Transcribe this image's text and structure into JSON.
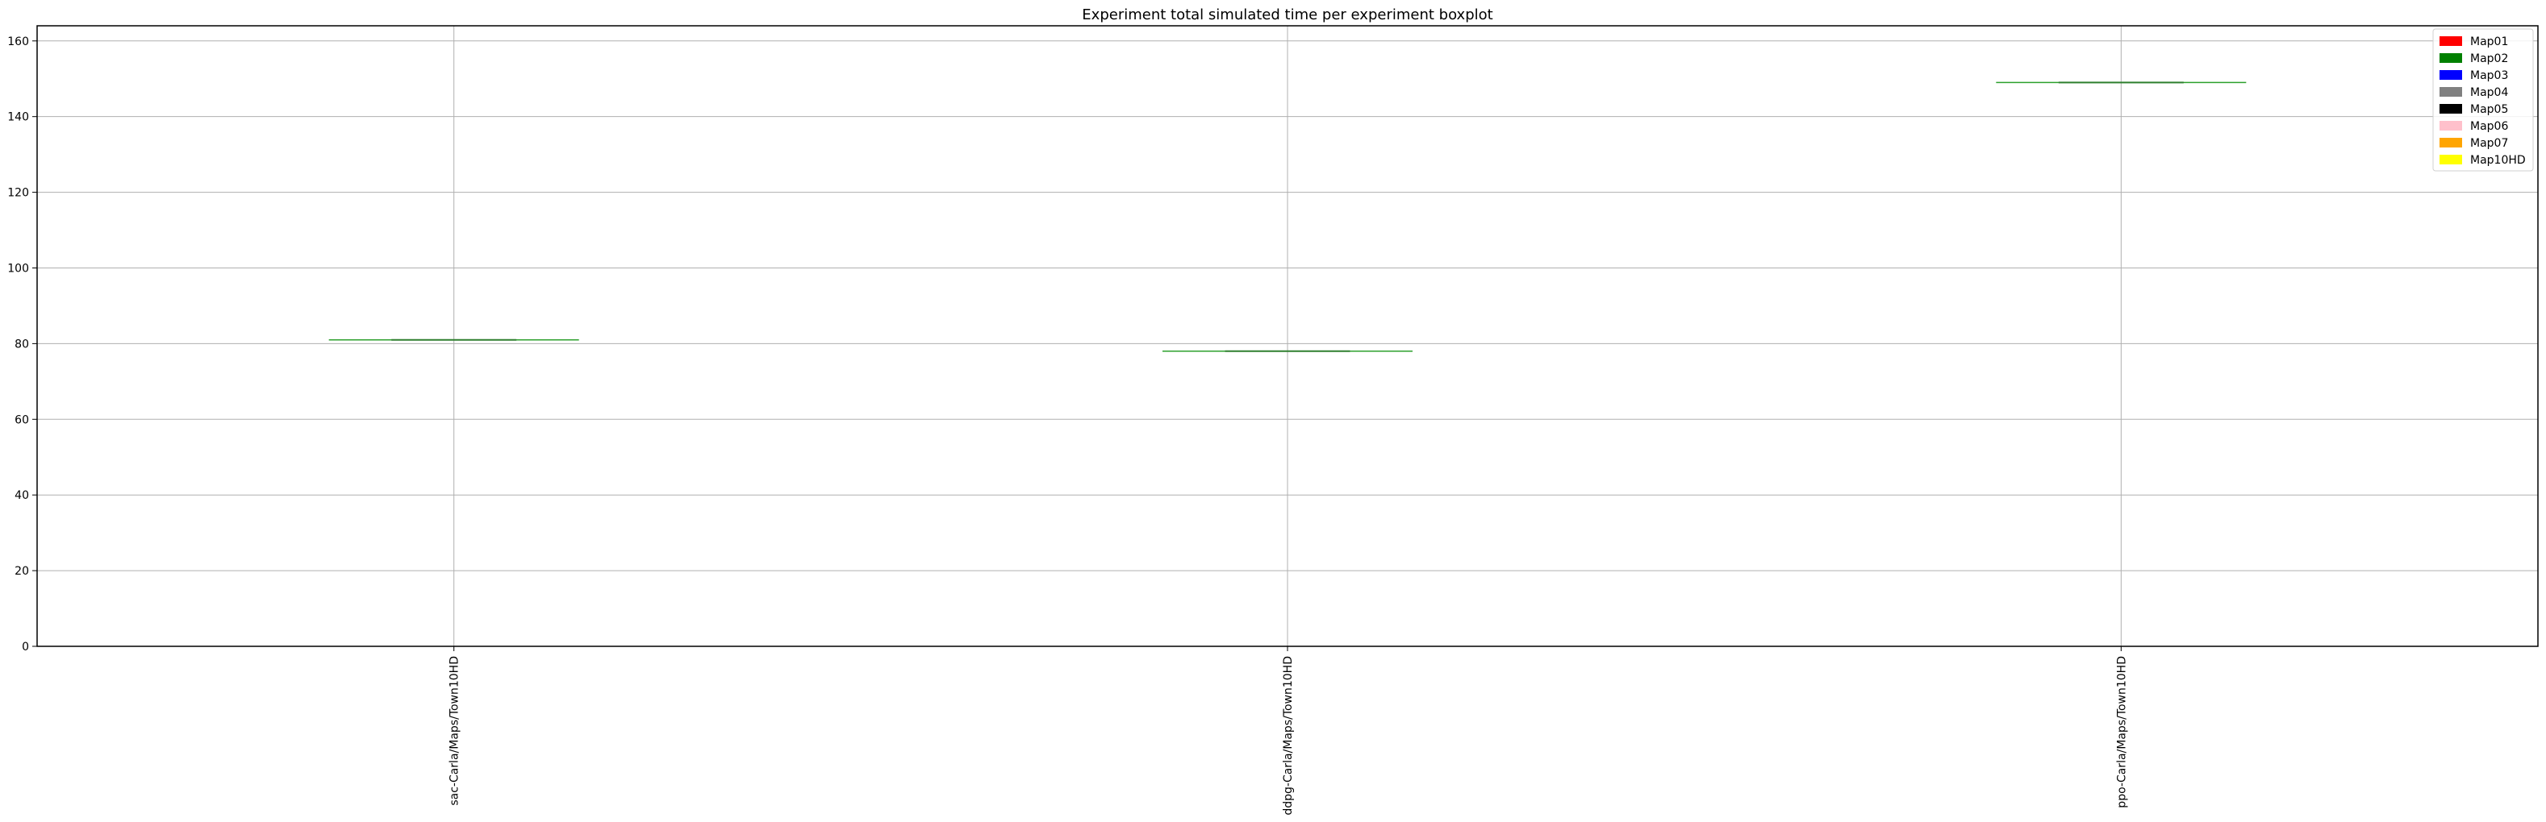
{
  "chart_data": {
    "type": "boxplot",
    "title": "Experiment total simulated time per experiment boxplot",
    "xlabel": "",
    "ylabel": "",
    "ylim": [
      0,
      164
    ],
    "yticks": [
      0,
      20,
      40,
      60,
      80,
      100,
      120,
      140,
      160
    ],
    "grid": true,
    "categories": [
      "sac-Carla/Maps/Town10HD",
      "ddpg-Carla/Maps/Town10HD",
      "ppo-Carla/Maps/Town10HD"
    ],
    "values": [
      81,
      78,
      149
    ],
    "median_color": "#2ca02c",
    "legend": {
      "position": "top-right",
      "entries": [
        {
          "label": "Map01",
          "color": "#ff0000"
        },
        {
          "label": "Map02",
          "color": "#008000"
        },
        {
          "label": "Map03",
          "color": "#0000ff"
        },
        {
          "label": "Map04",
          "color": "#808080"
        },
        {
          "label": "Map05",
          "color": "#000000"
        },
        {
          "label": "Map06",
          "color": "#ffc0cb"
        },
        {
          "label": "Map07",
          "color": "#ffa500"
        },
        {
          "label": "Map10HD",
          "color": "#ffff00"
        }
      ]
    }
  }
}
